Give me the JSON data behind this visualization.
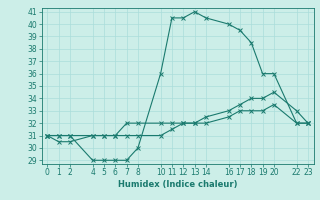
{
  "title": "",
  "xlabel": "Humidex (Indice chaleur)",
  "background_color": "#cceee8",
  "line_color": "#1a7a6e",
  "grid_color": "#aaddda",
  "ylim": [
    29,
    41
  ],
  "xlim": [
    -0.5,
    23.5
  ],
  "yticks": [
    29,
    30,
    31,
    32,
    33,
    34,
    35,
    36,
    37,
    38,
    39,
    40,
    41
  ],
  "xticks": [
    0,
    1,
    2,
    4,
    5,
    6,
    7,
    8,
    10,
    11,
    12,
    13,
    14,
    16,
    17,
    18,
    19,
    20,
    22,
    23
  ],
  "xtick_labels": [
    "0",
    "1",
    "2",
    "4",
    "5",
    "6",
    "7",
    "8",
    "10",
    "11",
    "12",
    "13",
    "14",
    "16",
    "17",
    "18",
    "19",
    "20",
    "22",
    "23"
  ],
  "line1_x": [
    0,
    1,
    2,
    4,
    5,
    6,
    7,
    8,
    10,
    11,
    12,
    13,
    14,
    16,
    17,
    18,
    19,
    20,
    22,
    23
  ],
  "line1_y": [
    31,
    31,
    31,
    29,
    29,
    29,
    29,
    30,
    36,
    40.5,
    40.5,
    41,
    40.5,
    40,
    39.5,
    38.5,
    36,
    36,
    32,
    32
  ],
  "line2_x": [
    0,
    1,
    2,
    4,
    5,
    6,
    7,
    8,
    10,
    11,
    12,
    13,
    14,
    16,
    17,
    18,
    19,
    20,
    22,
    23
  ],
  "line2_y": [
    31,
    30.5,
    30.5,
    31,
    31,
    31,
    32,
    32,
    32,
    32,
    32,
    32,
    32.5,
    33,
    33.5,
    34,
    34,
    34.5,
    33,
    32
  ],
  "line3_x": [
    0,
    1,
    2,
    4,
    5,
    6,
    7,
    8,
    10,
    11,
    12,
    13,
    14,
    16,
    17,
    18,
    19,
    20,
    22,
    23
  ],
  "line3_y": [
    31,
    31,
    31,
    31,
    31,
    31,
    31,
    31,
    31,
    31.5,
    32,
    32,
    32,
    32.5,
    33,
    33,
    33,
    33.5,
    32,
    32
  ],
  "tick_fontsize": 5.5,
  "xlabel_fontsize": 6.0
}
